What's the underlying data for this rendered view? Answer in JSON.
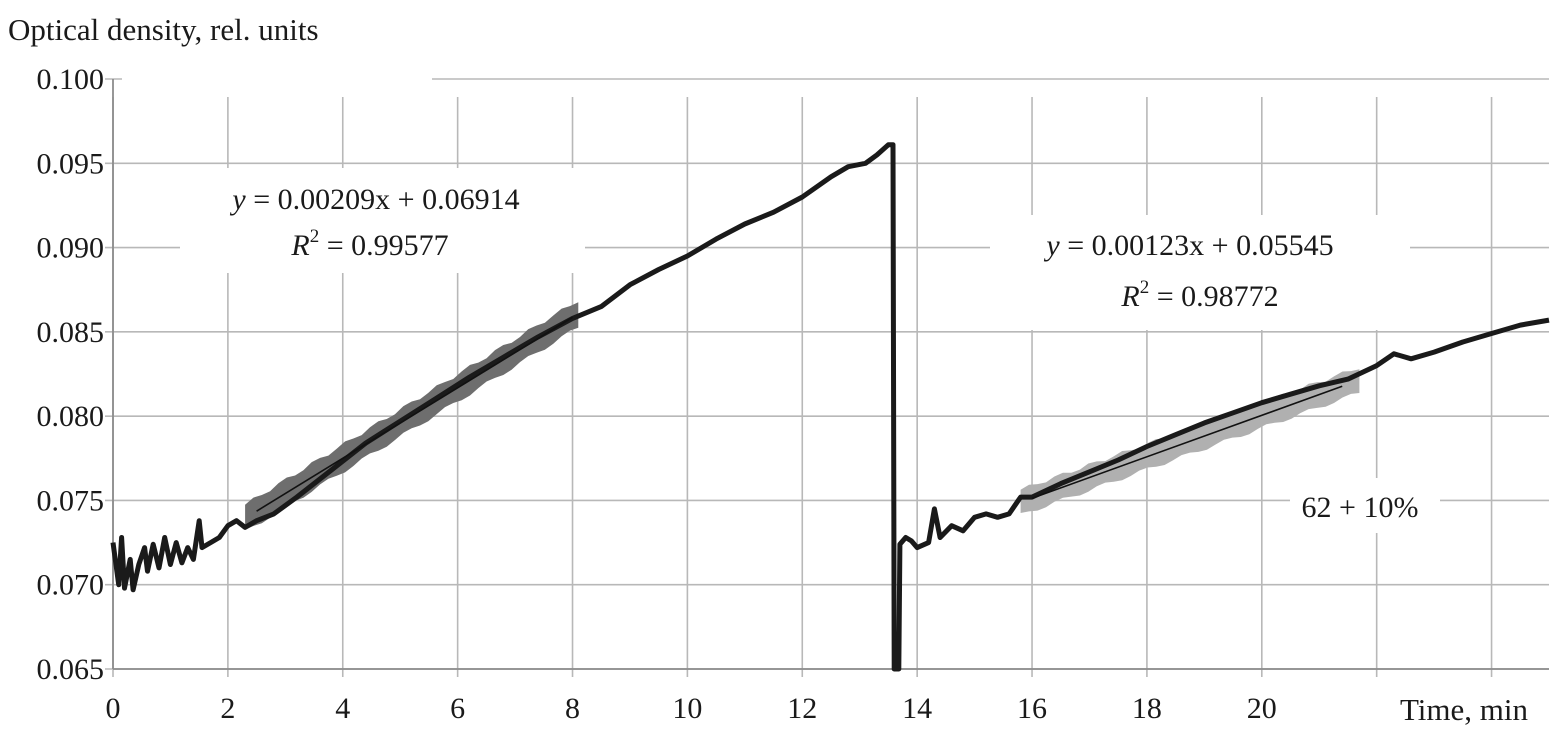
{
  "chart_data": {
    "type": "line",
    "ylabel": "Optical density, rel. units",
    "xlabel": "Time, min",
    "xlim": [
      0,
      25
    ],
    "ylim": [
      0.065,
      0.1
    ],
    "x_ticks": [
      0,
      2,
      4,
      6,
      8,
      10,
      12,
      14,
      16,
      18,
      20
    ],
    "x_tick_labels": [
      "0",
      "2",
      "4",
      "6",
      "8",
      "10",
      "12",
      "14",
      "16",
      "18",
      "20"
    ],
    "y_ticks": [
      0.065,
      0.07,
      0.075,
      0.08,
      0.085,
      0.09,
      0.095,
      0.1
    ],
    "y_tick_labels": [
      "0.065",
      "0.070",
      "0.075",
      "0.080",
      "0.085",
      "0.090",
      "0.095",
      "0.100"
    ],
    "grid": true,
    "series": [
      {
        "color": "#1a1a1a",
        "points": [
          [
            0.0,
            0.0725
          ],
          [
            0.1,
            0.07
          ],
          [
            0.15,
            0.0728
          ],
          [
            0.2,
            0.0698
          ],
          [
            0.3,
            0.0715
          ],
          [
            0.35,
            0.0697
          ],
          [
            0.45,
            0.0712
          ],
          [
            0.55,
            0.0722
          ],
          [
            0.6,
            0.0708
          ],
          [
            0.7,
            0.0724
          ],
          [
            0.8,
            0.071
          ],
          [
            0.9,
            0.0728
          ],
          [
            1.0,
            0.0712
          ],
          [
            1.1,
            0.0725
          ],
          [
            1.2,
            0.0713
          ],
          [
            1.3,
            0.0722
          ],
          [
            1.4,
            0.0715
          ],
          [
            1.5,
            0.0738
          ],
          [
            1.55,
            0.0722
          ],
          [
            1.7,
            0.0725
          ],
          [
            1.85,
            0.0728
          ],
          [
            2.0,
            0.0735
          ],
          [
            2.15,
            0.0738
          ],
          [
            2.3,
            0.0734
          ],
          [
            2.5,
            0.0738
          ],
          [
            2.8,
            0.0742
          ],
          [
            3.2,
            0.0752
          ],
          [
            3.8,
            0.0768
          ],
          [
            4.4,
            0.0784
          ],
          [
            5.0,
            0.0797
          ],
          [
            5.6,
            0.081
          ],
          [
            6.2,
            0.0823
          ],
          [
            6.8,
            0.0835
          ],
          [
            7.4,
            0.0847
          ],
          [
            8.0,
            0.0858
          ],
          [
            8.5,
            0.0865
          ],
          [
            9.0,
            0.0878
          ],
          [
            9.5,
            0.0887
          ],
          [
            10.0,
            0.0895
          ],
          [
            10.5,
            0.0905
          ],
          [
            11.0,
            0.0914
          ],
          [
            11.5,
            0.0921
          ],
          [
            12.0,
            0.093
          ],
          [
            12.5,
            0.0942
          ],
          [
            12.8,
            0.0948
          ],
          [
            13.1,
            0.095
          ],
          [
            13.3,
            0.0955
          ],
          [
            13.5,
            0.0961
          ],
          [
            13.58,
            0.0961
          ],
          [
            13.6,
            0.065
          ],
          [
            13.68,
            0.065
          ],
          [
            13.7,
            0.0724
          ],
          [
            13.8,
            0.0728
          ],
          [
            13.9,
            0.0726
          ],
          [
            14.0,
            0.0722
          ],
          [
            14.2,
            0.0725
          ],
          [
            14.3,
            0.0745
          ],
          [
            14.4,
            0.0728
          ],
          [
            14.6,
            0.0735
          ],
          [
            14.8,
            0.0732
          ],
          [
            15.0,
            0.074
          ],
          [
            15.2,
            0.0742
          ],
          [
            15.4,
            0.074
          ],
          [
            15.6,
            0.0742
          ],
          [
            15.8,
            0.0752
          ],
          [
            16.0,
            0.0752
          ],
          [
            16.5,
            0.076
          ],
          [
            17.0,
            0.0767
          ],
          [
            17.5,
            0.0774
          ],
          [
            18.0,
            0.0782
          ],
          [
            18.5,
            0.0789
          ],
          [
            19.0,
            0.0796
          ],
          [
            19.5,
            0.0802
          ],
          [
            20.0,
            0.0808
          ],
          [
            20.5,
            0.0813
          ],
          [
            21.0,
            0.0818
          ],
          [
            21.5,
            0.0822
          ],
          [
            22.0,
            0.083
          ],
          [
            22.3,
            0.0837
          ],
          [
            22.6,
            0.0834
          ],
          [
            23.0,
            0.0838
          ],
          [
            23.5,
            0.0844
          ],
          [
            24.0,
            0.0849
          ],
          [
            24.5,
            0.0854
          ],
          [
            25.0,
            0.0857
          ]
        ]
      }
    ],
    "fit_bands": [
      {
        "x_range": [
          2.3,
          8.1
        ],
        "color": "#6e6e6e",
        "half_width": 0.0008
      },
      {
        "x_range": [
          15.8,
          21.7
        ],
        "color": "#b0b0b0",
        "half_width": 0.00075
      }
    ],
    "fits": [
      {
        "slope": 0.00209,
        "intercept": 0.06914,
        "x_range": [
          2.5,
          8.0
        ],
        "equation": "y = 0.00209x + 0.06914",
        "r2_label": "R",
        "r2_exp": "2",
        "r2_value": " = 0.99577"
      },
      {
        "slope": 0.00123,
        "intercept": 0.05545,
        "x_range": [
          16.0,
          21.4
        ],
        "equation": "y = 0.00123x + 0.05545",
        "r2_label": "R",
        "r2_exp": "2",
        "r2_value": " = 0.98772"
      }
    ],
    "annotations": [
      {
        "text": "62 + 10%"
      }
    ]
  }
}
